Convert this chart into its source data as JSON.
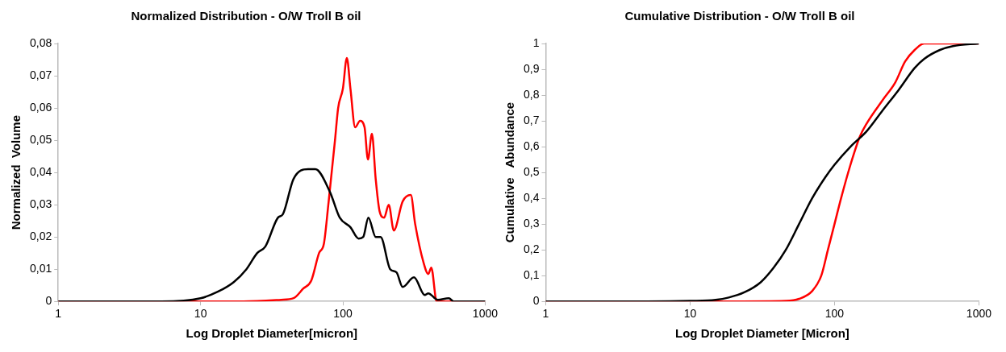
{
  "chart_data": [
    {
      "type": "line",
      "title": "Normalized Distribution - O/W Troll B oil",
      "xlabel": "Log Droplet Diameter[micron]",
      "ylabel": "Normalized  Volume",
      "log": "x",
      "grid": false,
      "legend": false,
      "marker": "none",
      "line_style": "solid",
      "xlim": [
        1,
        1000
      ],
      "xticks": [
        1,
        10,
        100,
        1000
      ],
      "ylim": [
        0,
        0.08
      ],
      "yticks": [
        {
          "value": 0,
          "label": "0"
        },
        {
          "value": 0.01,
          "label": "0,01"
        },
        {
          "value": 0.02,
          "label": "0,02"
        },
        {
          "value": 0.03,
          "label": "0,03"
        },
        {
          "value": 0.04,
          "label": "0,04"
        },
        {
          "value": 0.05,
          "label": "0,05"
        },
        {
          "value": 0.06,
          "label": "0,06"
        },
        {
          "value": 0.07,
          "label": "0,07"
        },
        {
          "value": 0.08,
          "label": "0,08"
        }
      ],
      "series": [
        {
          "color": "#000000",
          "x": [
            1,
            5.3,
            10,
            13.2,
            17.1,
            21,
            25,
            28.5,
            35,
            37.8,
            45,
            57,
            64,
            81,
            95,
            113,
            129,
            139,
            151,
            170,
            184,
            215,
            238,
            263,
            316,
            376,
            398,
            464,
            555,
            600,
            1000
          ],
          "values": [
            0,
            0,
            0.001,
            0.003,
            0.006,
            0.01,
            0.015,
            0.017,
            0.026,
            0.027,
            0.038,
            0.041,
            0.041,
            0.034,
            0.026,
            0.023,
            0.0195,
            0.02,
            0.026,
            0.02,
            0.02,
            0.01,
            0.009,
            0.0045,
            0.0075,
            0.002,
            0.0025,
            0.0005,
            0.001,
            0,
            0
          ]
        },
        {
          "color": "#ff0000",
          "x": [
            1,
            20,
            36.8,
            45,
            52.7,
            60,
            68,
            73.6,
            79,
            88,
            92.6,
            100,
            106.6,
            113,
            122,
            132,
            142,
            150,
            160,
            170,
            181,
            195,
            210,
            228,
            263,
            300,
            322,
            369,
            398,
            418,
            456,
            1000
          ],
          "values": [
            0,
            0,
            0.0005,
            0.001,
            0.004,
            0.0065,
            0.015,
            0.018,
            0.03,
            0.05,
            0.06,
            0.066,
            0.0755,
            0.066,
            0.054,
            0.056,
            0.054,
            0.044,
            0.052,
            0.038,
            0.028,
            0.026,
            0.03,
            0.022,
            0.031,
            0.033,
            0.024,
            0.012,
            0.0085,
            0.0105,
            0,
            0
          ]
        }
      ]
    },
    {
      "type": "line",
      "title": "Cumulative Distribution - O/W Troll B oil",
      "xlabel": "Log Droplet Diameter [Micron]",
      "ylabel": "Cumulative   Abundance",
      "log": "x",
      "grid": false,
      "legend": false,
      "marker": "none",
      "line_style": "solid",
      "xlim": [
        1,
        1000
      ],
      "xticks": [
        1,
        10,
        100,
        1000
      ],
      "ylim": [
        0,
        1
      ],
      "yticks": [
        0,
        {
          "value": 0.1,
          "label": "0,1"
        },
        {
          "value": 0.2,
          "label": "0,2"
        },
        {
          "value": 0.3,
          "label": "0,3"
        },
        {
          "value": 0.4,
          "label": "0,4"
        },
        {
          "value": 0.5,
          "label": "0,5"
        },
        {
          "value": 0.6,
          "label": "0,6"
        },
        {
          "value": 0.7,
          "label": "0,7"
        },
        {
          "value": 0.8,
          "label": "0,8"
        },
        {
          "value": 0.9,
          "label": "0,9"
        },
        1
      ],
      "series": [
        {
          "color": "#000000",
          "x": [
            1,
            5,
            10,
            15,
            18.5,
            23.7,
            30.9,
            37.8,
            46,
            56.8,
            70,
            86,
            100,
            129,
            167,
            215,
            278,
            359,
            417,
            537,
            661,
            1000
          ],
          "values": [
            0,
            0,
            0.002,
            0.006,
            0.015,
            0.035,
            0.075,
            0.13,
            0.2,
            0.3,
            0.4,
            0.48,
            0.53,
            0.6,
            0.66,
            0.74,
            0.82,
            0.905,
            0.94,
            0.975,
            0.99,
            1
          ]
        },
        {
          "color": "#ff0000",
          "x": [
            1,
            20,
            46,
            56.8,
            70,
            81,
            90,
            100,
            111,
            129,
            150,
            167,
            215,
            264,
            308,
            359,
            417,
            1000
          ],
          "values": [
            0,
            0,
            0.002,
            0.01,
            0.04,
            0.1,
            0.2,
            0.3,
            0.4,
            0.53,
            0.64,
            0.69,
            0.78,
            0.85,
            0.93,
            0.975,
            1,
            1
          ]
        }
      ]
    }
  ]
}
